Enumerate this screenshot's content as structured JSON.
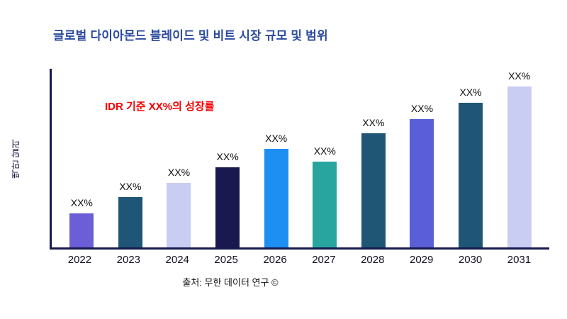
{
  "page": {
    "background": "#ffffff"
  },
  "chart_data": {
    "type": "bar",
    "title": "글로벌 다이아몬드 블레이드 및 비트 시장 규모 및 범위",
    "title_color": "#2b4a9e",
    "ylabel": "백만 달러",
    "xlabel": "",
    "annotation": {
      "text": "IDR 기준 XX%의 성장률",
      "color": "#f40000"
    },
    "source": "출처: 무한 데이터 연구 ©",
    "categories": [
      "2022",
      "2023",
      "2024",
      "2025",
      "2026",
      "2027",
      "2028",
      "2029",
      "2030",
      "2031"
    ],
    "bar_labels": [
      "XX%",
      "XX%",
      "XX%",
      "XX%",
      "XX%",
      "XX%",
      "XX%",
      "XX%",
      "XX%",
      "XX%"
    ],
    "relative_heights_pct": [
      19,
      28,
      36,
      45,
      55,
      48,
      64,
      72,
      81,
      90
    ],
    "bar_colors": [
      "#6b5ed6",
      "#1f5675",
      "#c9cdf2",
      "#191950",
      "#1d8ff2",
      "#27a59e",
      "#1f5675",
      "#5a5fd7",
      "#1f5675",
      "#c9cdf2"
    ],
    "axis_color": "#17174d",
    "grid": false,
    "legend": "none",
    "value_note": "values shown only as XX% placeholders; heights are relative percentages of plot height estimated from pixels"
  }
}
